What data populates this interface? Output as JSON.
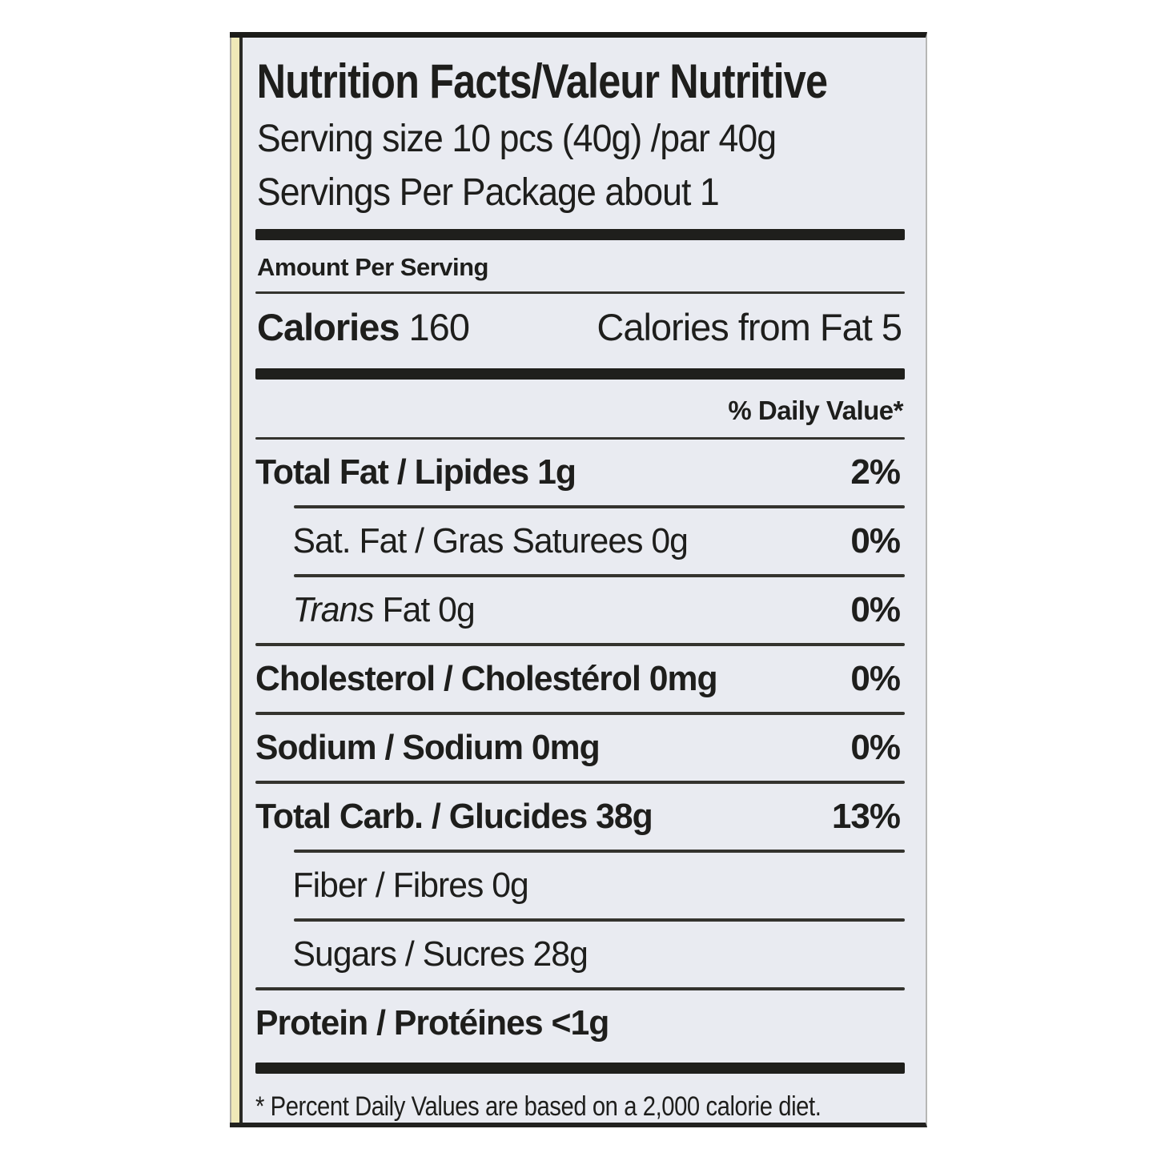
{
  "label": {
    "title": "Nutrition Facts/Valeur Nutritive",
    "serving_size": "Serving size 10 pcs (40g) /par 40g",
    "servings_per_package": "Servings Per Package about 1",
    "amount_per_serving": "Amount Per Serving",
    "calories": {
      "label": "Calories",
      "value": "160",
      "from_fat": "Calories from Fat 5"
    },
    "daily_value_header": "% Daily Value*",
    "rows": [
      {
        "parts": [
          {
            "text": "Total Fat / Lipides 1g"
          }
        ],
        "dv": "2%",
        "bold": true,
        "indent": false,
        "rule_below": "indent"
      },
      {
        "parts": [
          {
            "text": "Sat. Fat / Gras Saturees 0g"
          }
        ],
        "dv": "0%",
        "bold": false,
        "indent": true,
        "rule_below": "indent"
      },
      {
        "parts": [
          {
            "text": "Trans",
            "italic": true
          },
          {
            "text": " Fat 0g"
          }
        ],
        "dv": "0%",
        "bold": false,
        "indent": true,
        "rule_below": "full"
      },
      {
        "parts": [
          {
            "text": "Cholesterol / Cholestérol 0mg"
          }
        ],
        "dv": "0%",
        "bold": true,
        "indent": false,
        "rule_below": "full"
      },
      {
        "parts": [
          {
            "text": "Sodium / Sodium 0mg"
          }
        ],
        "dv": "0%",
        "bold": true,
        "indent": false,
        "rule_below": "full"
      },
      {
        "parts": [
          {
            "text": "Total Carb. / Glucides 38g"
          }
        ],
        "dv": "13%",
        "bold": true,
        "indent": false,
        "rule_below": "indent"
      },
      {
        "parts": [
          {
            "text": "Fiber / Fibres 0g"
          }
        ],
        "dv": "",
        "bold": false,
        "indent": true,
        "rule_below": "indent"
      },
      {
        "parts": [
          {
            "text": "Sugars / Sucres 28g"
          }
        ],
        "dv": "",
        "bold": false,
        "indent": true,
        "rule_below": "full"
      },
      {
        "parts": [
          {
            "text": "Protein / Protéines <1g"
          }
        ],
        "dv": "",
        "bold": true,
        "indent": false,
        "rule_below": "none"
      }
    ],
    "footnote": "* Percent Daily Values are based on a 2,000 calorie diet."
  }
}
